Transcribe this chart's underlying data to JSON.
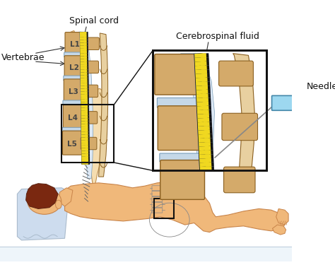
{
  "bg_color": "#ffffff",
  "label_spinal_cord": "Spinal cord",
  "label_vertebrae": "Vertebrae",
  "label_csf": "Cerebrospinal fluid",
  "label_needle": "Needle",
  "vertebrae_labels": [
    "L1",
    "L2",
    "L3",
    "L4",
    "L5"
  ],
  "vert_color": "#d4aa6a",
  "vert_edge": "#8b6020",
  "disc_color": "#c5d8e8",
  "disc_edge": "#7a9db8",
  "canal_color": "#dce8f5",
  "cord_yellow": "#f0d820",
  "cord_black": "#111111",
  "skin_color": "#f0b87a",
  "skin_edge": "#c8844a",
  "hair_color": "#7a2810",
  "pillow_color": "#cddcee",
  "needle_color": "#9dd8f0",
  "box_color": "#111111",
  "bg_spine": "#e8d0a0",
  "muscle_color": "#e8c898",
  "font_size": 9
}
